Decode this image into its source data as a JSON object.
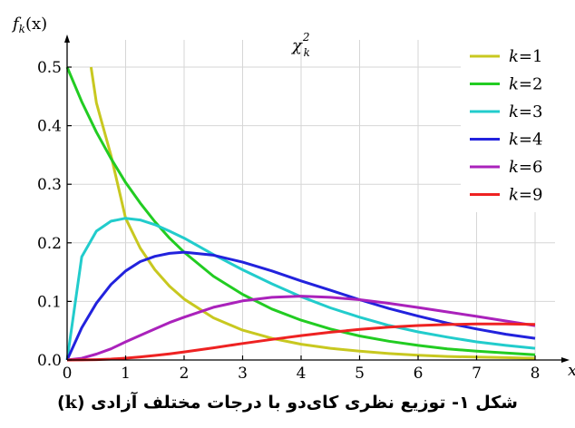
{
  "chart_data": {
    "type": "line",
    "title": "χ",
    "title_super": "2",
    "title_sub": "k",
    "ylabel": "f_k(x)",
    "ylabel_parts": {
      "f": "f",
      "sub": "k",
      "arg": "(x)"
    },
    "xlabel": "x",
    "xlim": [
      0,
      8
    ],
    "ylim": [
      0,
      0.5
    ],
    "x_ticks": [
      "0",
      "1",
      "2",
      "3",
      "4",
      "5",
      "6",
      "7",
      "8"
    ],
    "y_ticks": [
      "0.0",
      "0.1",
      "0.2",
      "0.3",
      "0.4",
      "0.5"
    ],
    "grid": true,
    "legend_position": "top-right",
    "legend_prefix": "k",
    "x": [
      0,
      0.25,
      0.5,
      0.75,
      1,
      1.25,
      1.5,
      1.75,
      2,
      2.5,
      3,
      3.5,
      4,
      4.5,
      5,
      5.5,
      6,
      6.5,
      7,
      7.5,
      8
    ],
    "series": [
      {
        "name": "k=1",
        "k": "1",
        "color": "#c8c820",
        "points": [
          [
            0.41,
            0.5
          ],
          [
            0.5,
            0.439
          ],
          [
            0.75,
            0.349
          ],
          [
            1,
            0.242
          ],
          [
            1.25,
            0.191
          ],
          [
            1.5,
            0.154
          ],
          [
            1.75,
            0.126
          ],
          [
            2,
            0.104
          ],
          [
            2.5,
            0.072
          ],
          [
            3,
            0.051
          ],
          [
            3.5,
            0.037
          ],
          [
            4,
            0.027
          ],
          [
            4.5,
            0.02
          ],
          [
            5,
            0.015
          ],
          [
            5.5,
            0.011
          ],
          [
            6,
            0.008
          ],
          [
            6.5,
            0.006
          ],
          [
            7,
            0.005
          ],
          [
            7.5,
            0.004
          ],
          [
            8,
            0.003
          ]
        ]
      },
      {
        "name": "k=2",
        "k": "2",
        "color": "#22cc22",
        "values": [
          0.5,
          0.441,
          0.389,
          0.344,
          0.303,
          0.268,
          0.236,
          0.208,
          0.184,
          0.143,
          0.112,
          0.087,
          0.068,
          0.053,
          0.041,
          0.032,
          0.025,
          0.019,
          0.015,
          0.012,
          0.009
        ]
      },
      {
        "name": "k=3",
        "k": "3",
        "color": "#22cccc",
        "values": [
          0,
          0.176,
          0.22,
          0.237,
          0.242,
          0.239,
          0.231,
          0.22,
          0.208,
          0.18,
          0.154,
          0.13,
          0.108,
          0.089,
          0.073,
          0.059,
          0.048,
          0.039,
          0.031,
          0.025,
          0.02
        ]
      },
      {
        "name": "k=4",
        "k": "4",
        "color": "#2222dd",
        "values": [
          0,
          0.055,
          0.097,
          0.129,
          0.152,
          0.168,
          0.177,
          0.182,
          0.184,
          0.179,
          0.167,
          0.152,
          0.135,
          0.119,
          0.103,
          0.088,
          0.075,
          0.063,
          0.053,
          0.044,
          0.037
        ]
      },
      {
        "name": "k=6",
        "k": "6",
        "color": "#aa22bb",
        "values": [
          0,
          0.003,
          0.01,
          0.019,
          0.031,
          0.042,
          0.053,
          0.064,
          0.073,
          0.09,
          0.101,
          0.107,
          0.109,
          0.107,
          0.103,
          0.0968,
          0.0896,
          0.082,
          0.0744,
          0.0665,
          0.0586
        ]
      },
      {
        "name": "k=9",
        "k": "9",
        "color": "#ee2222",
        "values": [
          0,
          0.0001,
          0.0006,
          0.0015,
          0.0031,
          0.0052,
          0.0077,
          0.0105,
          0.0137,
          0.0208,
          0.0281,
          0.0351,
          0.0416,
          0.0474,
          0.0522,
          0.056,
          0.0588,
          0.0606,
          0.0615,
          0.0616,
          0.0609
        ]
      }
    ]
  },
  "caption": {
    "text": "شکل ۱- توزیع نظری کای‌دو با درجات مختلف آزادی (",
    "bold_var": "k",
    "close": ")"
  }
}
